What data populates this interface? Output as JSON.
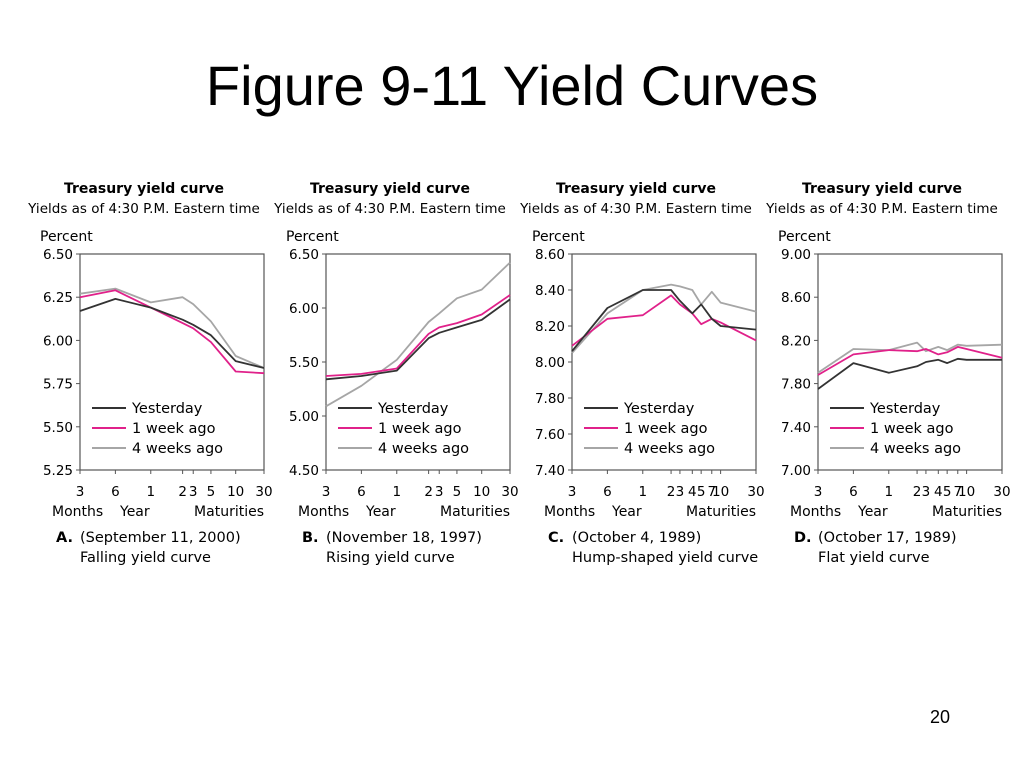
{
  "slide": {
    "title": "Figure 9-11 Yield Curves",
    "page_number": "20"
  },
  "colors": {
    "yesterday": "#333333",
    "one_week_ago": "#e0218a",
    "four_weeks_ago": "#a6a6a6",
    "frame": "#555555"
  },
  "chart_data": [
    {
      "type": "line",
      "title": "Treasury yield curve",
      "subtitle": "Yields as of 4:30 P.M. Eastern time",
      "ylabel": "Percent",
      "xlabel": "Maturities",
      "x_group_labels": [
        "Months",
        "Year"
      ],
      "caption_letter": "A.",
      "caption_date": "(September 11, 2000)",
      "caption_desc": "Falling yield curve",
      "ylim": [
        5.25,
        6.5
      ],
      "yticks": [
        "6.50",
        "6.25",
        "6.00",
        "5.75",
        "5.50",
        "5.25"
      ],
      "x": [
        "3",
        "6",
        "1",
        "2",
        "3",
        "5",
        "10",
        "30"
      ],
      "x_positions": [
        0,
        1,
        2,
        2.9,
        3.2,
        3.7,
        4.4,
        5.2
      ],
      "x_range": [
        0,
        5.2
      ],
      "series": [
        {
          "name": "Yesterday",
          "color": "#333333",
          "values": [
            6.17,
            6.24,
            6.19,
            6.12,
            6.09,
            6.03,
            5.88,
            5.84
          ]
        },
        {
          "name": "1 week ago",
          "color": "#e0218a",
          "values": [
            6.25,
            6.29,
            6.19,
            6.1,
            6.07,
            5.99,
            5.82,
            5.81
          ]
        },
        {
          "name": "4 weeks ago",
          "color": "#a6a6a6",
          "values": [
            6.27,
            6.3,
            6.22,
            6.25,
            6.21,
            6.11,
            5.91,
            5.84
          ]
        }
      ]
    },
    {
      "type": "line",
      "title": "Treasury yield curve",
      "subtitle": "Yields as of 4:30 P.M. Eastern time",
      "ylabel": "Percent",
      "xlabel": "Maturities",
      "x_group_labels": [
        "Months",
        "Year"
      ],
      "caption_letter": "B.",
      "caption_date": "(November 18, 1997)",
      "caption_desc": "Rising yield curve",
      "ylim": [
        4.5,
        6.5
      ],
      "yticks": [
        "6.50",
        "6.00",
        "5.50",
        "5.00",
        "4.50"
      ],
      "x": [
        "3",
        "6",
        "1",
        "2",
        "3",
        "5",
        "10",
        "30"
      ],
      "x_positions": [
        0,
        1,
        2,
        2.9,
        3.2,
        3.7,
        4.4,
        5.2
      ],
      "x_range": [
        0,
        5.2
      ],
      "series": [
        {
          "name": "Yesterday",
          "color": "#333333",
          "values": [
            5.34,
            5.37,
            5.42,
            5.72,
            5.77,
            5.82,
            5.89,
            6.08
          ]
        },
        {
          "name": "1 week ago",
          "color": "#e0218a",
          "values": [
            5.37,
            5.39,
            5.44,
            5.76,
            5.82,
            5.86,
            5.94,
            6.12
          ]
        },
        {
          "name": "4 weeks ago",
          "color": "#a6a6a6",
          "values": [
            5.09,
            5.28,
            5.52,
            5.87,
            5.95,
            6.09,
            6.17,
            6.42
          ]
        }
      ]
    },
    {
      "type": "line",
      "title": "Treasury yield curve",
      "subtitle": "Yields as of 4:30 P.M. Eastern time",
      "ylabel": "Percent",
      "xlabel": "Maturities",
      "x_group_labels": [
        "Months",
        "Year"
      ],
      "caption_letter": "C.",
      "caption_date": "(October 4, 1989)",
      "caption_desc": "Hump-shaped yield curve",
      "ylim": [
        7.4,
        8.6
      ],
      "yticks": [
        "8.60",
        "8.40",
        "8.20",
        "8.00",
        "7.80",
        "7.60",
        "7.40"
      ],
      "x": [
        "3",
        "6",
        "1",
        "2",
        "3",
        "4",
        "5",
        "7",
        "10",
        "30"
      ],
      "x_positions": [
        0,
        1,
        2,
        2.8,
        3.05,
        3.4,
        3.65,
        3.95,
        4.2,
        5.2
      ],
      "x_range": [
        0,
        5.2
      ],
      "series": [
        {
          "name": "Yesterday",
          "color": "#333333",
          "values": [
            8.06,
            8.3,
            8.4,
            8.4,
            8.34,
            8.27,
            8.32,
            8.24,
            8.2,
            8.18
          ]
        },
        {
          "name": "1 week ago",
          "color": "#e0218a",
          "values": [
            8.09,
            8.24,
            8.26,
            8.37,
            8.32,
            8.27,
            8.21,
            8.24,
            8.22,
            8.12
          ]
        },
        {
          "name": "4 weeks ago",
          "color": "#a6a6a6",
          "values": [
            8.05,
            8.27,
            8.4,
            8.43,
            8.42,
            8.4,
            8.32,
            8.39,
            8.33,
            8.28
          ]
        }
      ]
    },
    {
      "type": "line",
      "title": "Treasury yield curve",
      "subtitle": "Yields as of 4:30 P.M. Eastern time",
      "ylabel": "Percent",
      "xlabel": "Maturities",
      "x_group_labels": [
        "Months",
        "Year"
      ],
      "caption_letter": "D.",
      "caption_date": "(October 17, 1989)",
      "caption_desc": "Flat yield curve",
      "ylim": [
        7.0,
        9.0
      ],
      "yticks": [
        "9.00",
        "8.60",
        "8.20",
        "7.80",
        "7.40",
        "7.00"
      ],
      "x": [
        "3",
        "6",
        "1",
        "2",
        "3",
        "4",
        "5",
        "7",
        "10",
        "30"
      ],
      "x_positions": [
        0,
        1,
        2,
        2.8,
        3.05,
        3.4,
        3.65,
        3.95,
        4.2,
        5.2
      ],
      "x_range": [
        0,
        5.2
      ],
      "series": [
        {
          "name": "Yesterday",
          "color": "#333333",
          "values": [
            7.75,
            7.99,
            7.9,
            7.96,
            8.0,
            8.02,
            7.99,
            8.03,
            8.02,
            8.02
          ]
        },
        {
          "name": "1 week ago",
          "color": "#e0218a",
          "values": [
            7.88,
            8.07,
            8.11,
            8.1,
            8.12,
            8.07,
            8.09,
            8.14,
            8.12,
            8.04
          ]
        },
        {
          "name": "4 weeks ago",
          "color": "#a6a6a6",
          "values": [
            7.9,
            8.12,
            8.11,
            8.18,
            8.1,
            8.14,
            8.11,
            8.16,
            8.15,
            8.16
          ]
        }
      ]
    }
  ]
}
